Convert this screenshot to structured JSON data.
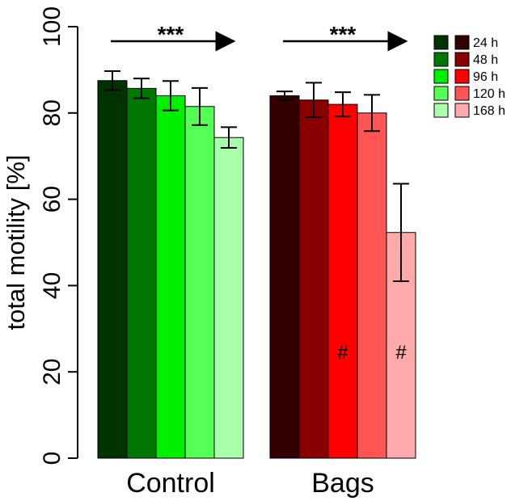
{
  "chart_data": {
    "type": "bar",
    "ylabel": "total motility [%]",
    "xlabel": "",
    "ylim": [
      0,
      100
    ],
    "yticks": [
      0,
      20,
      40,
      60,
      80,
      100
    ],
    "grid": false,
    "legend_position": "top-right",
    "groups": [
      {
        "name": "Control",
        "bars": [
          {
            "label": "24 h",
            "value": 87.5,
            "err": 2.2,
            "color": "#003300",
            "mark": ""
          },
          {
            "label": "48 h",
            "value": 85.7,
            "err": 2.3,
            "color": "#007700",
            "mark": ""
          },
          {
            "label": "96 h",
            "value": 84.0,
            "err": 3.4,
            "color": "#00ee00",
            "mark": ""
          },
          {
            "label": "120 h",
            "value": 81.5,
            "err": 4.3,
            "color": "#55ff55",
            "mark": ""
          },
          {
            "label": "168 h",
            "value": 74.3,
            "err": 2.4,
            "color": "#aaffaa",
            "mark": ""
          }
        ],
        "significance": "***"
      },
      {
        "name": "Bags",
        "bars": [
          {
            "label": "24 h",
            "value": 84.0,
            "err": 1.0,
            "color": "#330000",
            "mark": ""
          },
          {
            "label": "48 h",
            "value": 83.0,
            "err": 4.0,
            "color": "#880000",
            "mark": ""
          },
          {
            "label": "96 h",
            "value": 82.0,
            "err": 2.8,
            "color": "#ff0000",
            "mark": "#"
          },
          {
            "label": "120 h",
            "value": 80.0,
            "err": 4.2,
            "color": "#ff5555",
            "mark": ""
          },
          {
            "label": "168 h",
            "value": 52.3,
            "err": 11.3,
            "color": "#ffaaaa",
            "mark": "#"
          }
        ],
        "significance": "***"
      }
    ],
    "legend": [
      {
        "label": "24 h",
        "colors": [
          "#003300",
          "#330000"
        ]
      },
      {
        "label": "48 h",
        "colors": [
          "#007700",
          "#880000"
        ]
      },
      {
        "label": "96 h",
        "colors": [
          "#00ee00",
          "#ff0000"
        ]
      },
      {
        "label": "120 h",
        "colors": [
          "#55ff55",
          "#ff5555"
        ]
      },
      {
        "label": "168 h",
        "colors": [
          "#aaffaa",
          "#ffaaaa"
        ]
      }
    ]
  }
}
